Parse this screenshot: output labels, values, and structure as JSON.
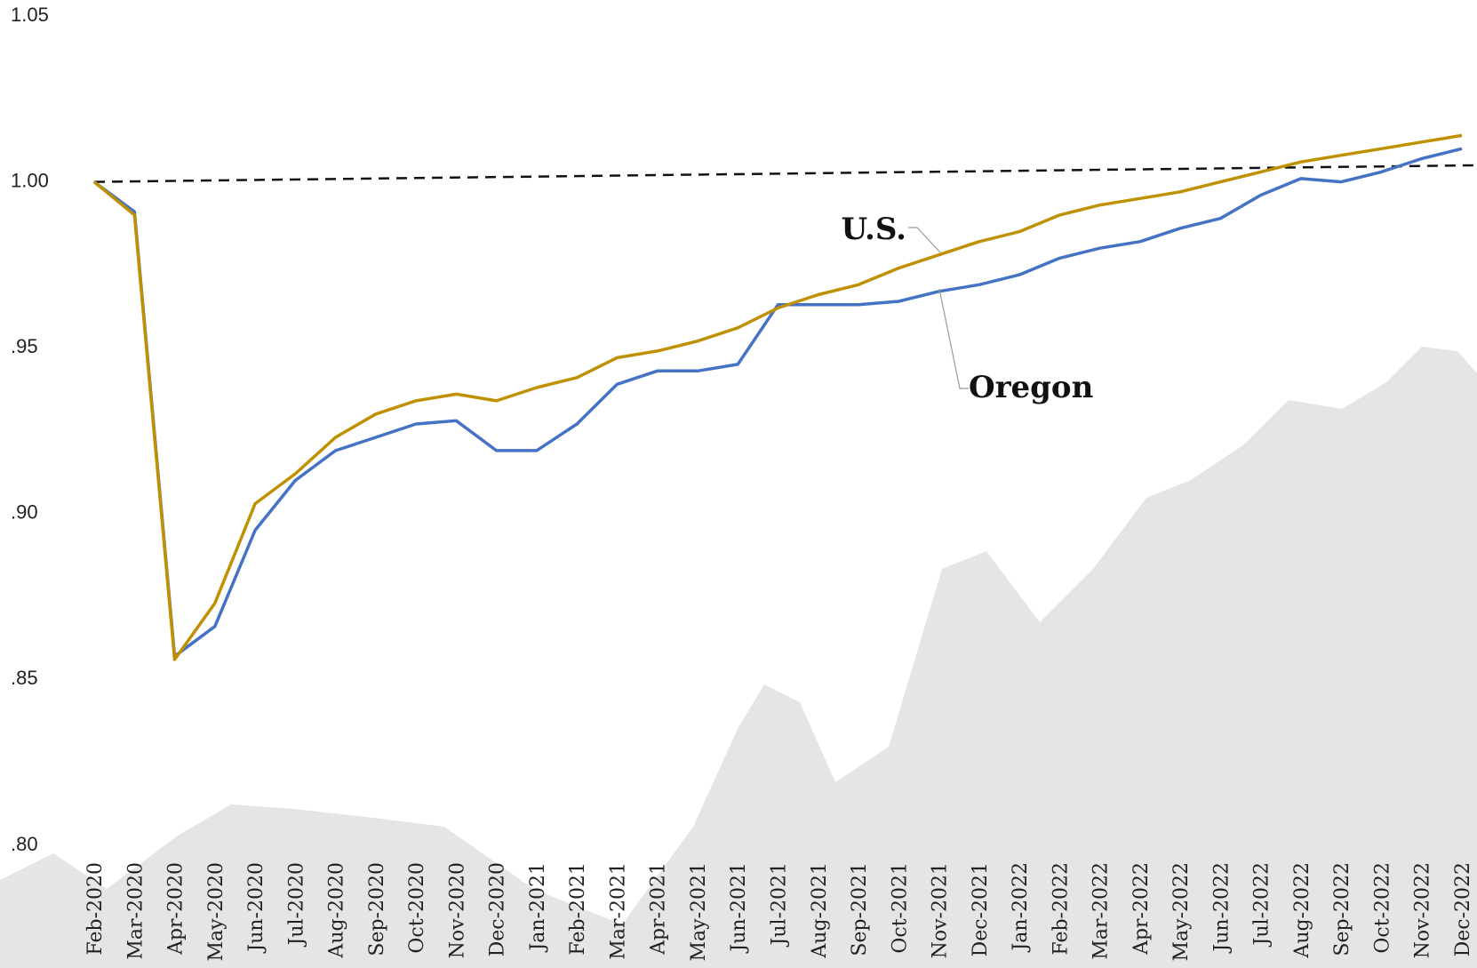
{
  "chart_data": {
    "type": "line",
    "categories": [
      "Feb-2020",
      "Mar-2020",
      "Apr-2020",
      "May-2020",
      "Jun-2020",
      "Jul-2020",
      "Aug-2020",
      "Sep-2020",
      "Oct-2020",
      "Nov-2020",
      "Dec-2020",
      "Jan-2021",
      "Feb-2021",
      "Mar-2021",
      "Apr-2021",
      "May-2021",
      "Jun-2021",
      "Jul-2021",
      "Aug-2021",
      "Sep-2021",
      "Oct-2021",
      "Nov-2021",
      "Dec-2021",
      "Jan-2022",
      "Feb-2022",
      "Mar-2022",
      "Apr-2022",
      "May-2022",
      "Jun-2022",
      "Jul-2022",
      "Aug-2022",
      "Sep-2022",
      "Oct-2022",
      "Nov-2022",
      "Dec-2022"
    ],
    "series": [
      {
        "name": "Oregon",
        "color": "#4472c4",
        "values": [
          1.0,
          0.991,
          0.857,
          0.866,
          0.895,
          0.91,
          0.919,
          0.923,
          0.927,
          0.928,
          0.919,
          0.919,
          0.927,
          0.939,
          0.943,
          0.943,
          0.945,
          0.963,
          0.963,
          0.963,
          0.964,
          0.967,
          0.969,
          0.972,
          0.977,
          0.98,
          0.982,
          0.986,
          0.989,
          0.996,
          1.001,
          1.0,
          1.003,
          1.007,
          1.01
        ]
      },
      {
        "name": "U.S.",
        "color": "#bf9000",
        "values": [
          1.0,
          0.99,
          0.856,
          0.873,
          0.903,
          0.912,
          0.923,
          0.93,
          0.934,
          0.936,
          0.934,
          0.938,
          0.941,
          0.947,
          0.949,
          0.952,
          0.956,
          0.962,
          0.966,
          0.969,
          0.974,
          0.978,
          0.982,
          0.985,
          0.99,
          0.993,
          0.995,
          0.997,
          1.0,
          1.003,
          1.006,
          1.008,
          1.01,
          1.012,
          1.014
        ]
      }
    ],
    "reference_line": {
      "start": 1.0,
      "end": 1.005
    },
    "ylim": [
      0.8,
      1.05
    ],
    "yticks": [
      {
        "value": 0.8,
        "label": ".80"
      },
      {
        "value": 0.85,
        "label": ".85"
      },
      {
        "value": 0.9,
        "label": ".90"
      },
      {
        "value": 0.95,
        "label": ".95"
      },
      {
        "value": 1.0,
        "label": "1.00"
      },
      {
        "value": 1.05,
        "label": "1.05"
      }
    ],
    "grid": false
  }
}
